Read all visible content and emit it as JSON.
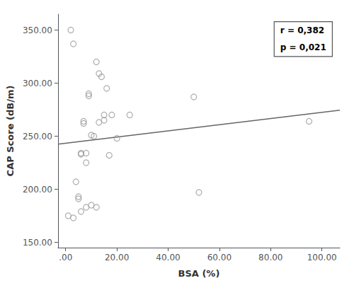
{
  "chart_data": {
    "type": "scatter",
    "xlabel": "BSA (%)",
    "ylabel": "CAP Score (dB/m)",
    "annotations": [
      "r = 0,382",
      "p = 0,021"
    ],
    "series": [
      {
        "type": "scatter",
        "color": "#999999",
        "marker": "circle",
        "x": [
          2,
          3,
          5,
          5,
          6,
          6,
          7,
          7,
          8,
          8,
          9,
          9,
          10,
          11,
          12,
          13,
          14,
          15,
          16,
          18,
          20,
          25,
          50,
          52,
          95,
          1,
          3,
          6,
          8,
          10,
          12,
          13,
          15,
          17,
          4
        ],
        "values": [
          350,
          337,
          193,
          191,
          234,
          233,
          262,
          264,
          234,
          225,
          290,
          288,
          251,
          250,
          320,
          309,
          306,
          270,
          295,
          270,
          248,
          270,
          287,
          197,
          264,
          175,
          173,
          179,
          183,
          185,
          183,
          263,
          265,
          232,
          207
        ]
      },
      {
        "type": "line",
        "color": "#666666",
        "line_style": "solid",
        "x": [
          -3,
          107
        ],
        "values": [
          242.5,
          274.5
        ]
      }
    ],
    "xlim": [
      -3,
      107
    ],
    "ylim": [
      145,
      365
    ],
    "xticks": [
      {
        "value": 0,
        "label": ".00"
      },
      {
        "value": 20,
        "label": "20.00"
      },
      {
        "value": 40,
        "label": "40.00"
      },
      {
        "value": 60,
        "label": "60.00"
      },
      {
        "value": 80,
        "label": "80.00"
      },
      {
        "value": 100,
        "label": "100.00"
      }
    ],
    "yticks": [
      {
        "value": 150,
        "label": "150.00"
      },
      {
        "value": 200,
        "label": "200.00"
      },
      {
        "value": 250,
        "label": "250.00"
      },
      {
        "value": 300,
        "label": "300.00"
      },
      {
        "value": 350,
        "label": "350.00"
      }
    ],
    "grid": false
  }
}
